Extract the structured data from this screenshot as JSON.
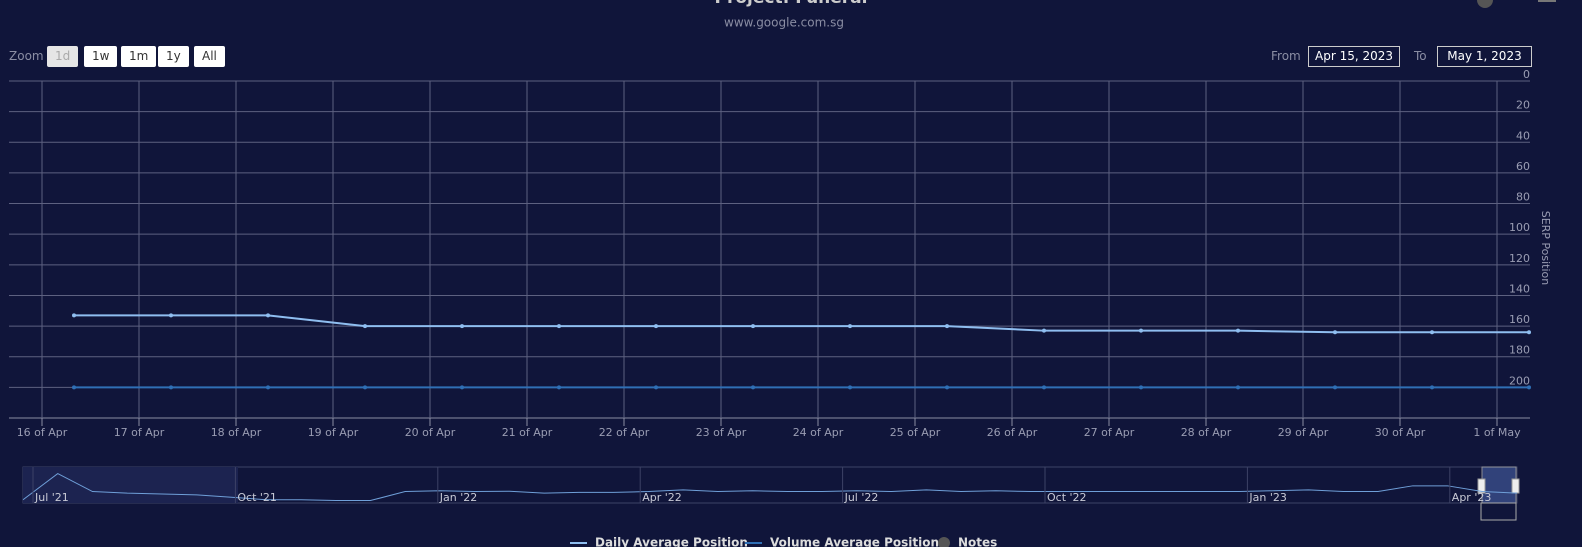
{
  "chart_data": {
    "type": "line",
    "title": "Project: Funeral",
    "subtitle": "www.google.com.sg",
    "zoom_label": "Zoom",
    "zoom_buttons": [
      "1d",
      "1w",
      "1m",
      "1y",
      "All"
    ],
    "from_label": "From",
    "from_date": "Apr 15, 2023",
    "to_label": "To",
    "to_date": "May 1, 2023",
    "y_axis_title": "SERP Position",
    "reversed": true,
    "categories": [
      "16 of Apr",
      "17 of Apr",
      "18 of Apr",
      "19 of Apr",
      "20 of Apr",
      "21 of Apr",
      "22 of Apr",
      "23 of Apr",
      "24 of Apr",
      "25 of Apr",
      "26 of Apr",
      "27 of Apr",
      "28 of Apr",
      "29 of Apr",
      "30 of Apr",
      "1 of May"
    ],
    "series": [
      {
        "name": "Daily Average Position",
        "color": "#8fbef0",
        "values": [
          153,
          153,
          153,
          160,
          160,
          160,
          160,
          160,
          160,
          160,
          163,
          163,
          163,
          164,
          164,
          164
        ]
      },
      {
        "name": "Volume Average Position",
        "color": "#2f6fb5",
        "values": [
          200,
          200,
          200,
          200,
          200,
          200,
          200,
          200,
          200,
          200,
          200,
          200,
          200,
          200,
          200,
          200
        ]
      }
    ],
    "notes_label": "Notes",
    "ylim": [
      0,
      220
    ],
    "yticks": [
      0,
      20,
      40,
      60,
      80,
      100,
      120,
      140,
      160,
      180,
      200
    ],
    "grid": true,
    "navigator": {
      "categories": [
        "Jul '21",
        "Oct '21",
        "Jan '22",
        "Apr '22",
        "Jul '22",
        "Oct '22",
        "Jan '23",
        "Apr '23"
      ],
      "values": [
        200,
        40,
        150,
        160,
        165,
        170,
        185,
        200,
        200,
        205,
        205,
        150,
        145,
        150,
        148,
        160,
        155,
        155,
        150,
        140,
        150,
        145,
        150,
        150,
        145,
        150,
        140,
        150,
        145,
        150,
        150,
        150,
        150,
        150,
        150,
        150,
        145,
        140,
        150,
        150,
        115,
        115,
        150,
        160
      ],
      "ylim": [
        0,
        220
      ]
    }
  }
}
